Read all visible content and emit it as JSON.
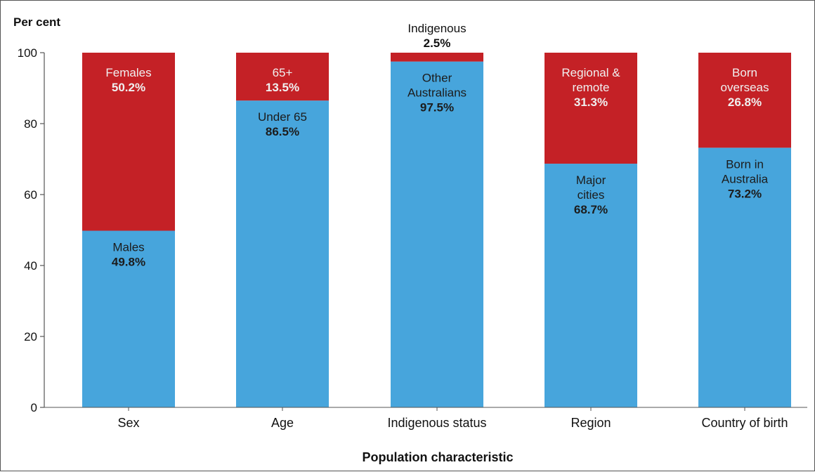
{
  "chart_data": {
    "type": "bar",
    "stacked": true,
    "ylabel": "Per cent",
    "xlabel": "Population characteristic",
    "ylim": [
      0,
      100
    ],
    "yticks": [
      0,
      20,
      40,
      60,
      80,
      100
    ],
    "grid": false,
    "colors": {
      "bottom": "#47A5DC",
      "top": "#C42126",
      "axis": "#555555"
    },
    "categories": [
      "Sex",
      "Age",
      "Indigenous status",
      "Region",
      "Country of birth"
    ],
    "bars": [
      {
        "category": "Sex",
        "bottom": {
          "label": [
            "Males"
          ],
          "pct": "49.8%",
          "value": 49.8
        },
        "top": {
          "label": [
            "Females"
          ],
          "pct": "50.2%",
          "value": 50.2
        }
      },
      {
        "category": "Age",
        "bottom": {
          "label": [
            "Under 65"
          ],
          "pct": "86.5%",
          "value": 86.5
        },
        "top": {
          "label": [
            "65+"
          ],
          "pct": "13.5%",
          "value": 13.5
        }
      },
      {
        "category": "Indigenous status",
        "bottom": {
          "label": [
            "Other",
            "Australians"
          ],
          "pct": "97.5%",
          "value": 97.5
        },
        "top": {
          "label": [
            "Indigenous"
          ],
          "pct": "2.5%",
          "value": 2.5,
          "outside": true
        }
      },
      {
        "category": "Region",
        "bottom": {
          "label": [
            "Major",
            "cities"
          ],
          "pct": "68.7%",
          "value": 68.7
        },
        "top": {
          "label": [
            "Regional &",
            "remote"
          ],
          "pct": "31.3%",
          "value": 31.3
        }
      },
      {
        "category": "Country of birth",
        "bottom": {
          "label": [
            "Born in",
            "Australia"
          ],
          "pct": "73.2%",
          "value": 73.2
        },
        "top": {
          "label": [
            "Born",
            "overseas"
          ],
          "pct": "26.8%",
          "value": 26.8
        }
      }
    ]
  }
}
